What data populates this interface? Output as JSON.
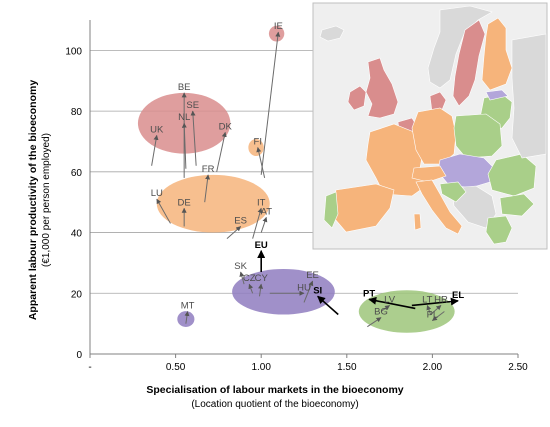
{
  "chart_data": {
    "type": "scatter",
    "xlabel": "Specialisation of labour markets in the bioeconomy",
    "xlabel_sub": "(Location quotient of the bioeconomy)",
    "ylabel": "Apparent labour productivity of the bioeconomy",
    "ylabel_sub": "(€1,000 per person employed)",
    "xlim": [
      0,
      2.5
    ],
    "ylim": [
      0,
      110
    ],
    "x_ticks": [
      "-",
      "0.50",
      "1.00",
      "1.50",
      "2.00",
      "2.50"
    ],
    "x_tick_values": [
      0,
      0.5,
      1.0,
      1.5,
      2.0,
      2.5
    ],
    "y_ticks": [
      "0",
      "20",
      "40",
      "60",
      "80",
      "100"
    ],
    "y_tick_values": [
      0,
      20,
      40,
      60,
      80,
      100
    ],
    "grid": "horizontal",
    "cluster_colors": {
      "pink": "#d98d8d",
      "orange": "#f6b47b",
      "purple": "#8f7cc0",
      "green": "#9dc57a"
    },
    "clusters": [
      {
        "color": "pink",
        "cx": 0.55,
        "cy": 76,
        "rx": 0.27,
        "ry": 10
      },
      {
        "color": "orange",
        "cx": 0.72,
        "cy": 49.5,
        "rx": 0.33,
        "ry": 9.5
      },
      {
        "color": "purple",
        "cx": 1.13,
        "cy": 20.5,
        "rx": 0.3,
        "ry": 7.5
      },
      {
        "color": "purple",
        "cx": 0.56,
        "cy": 11.5,
        "rx": 0.05,
        "ry": 2.6
      },
      {
        "color": "green",
        "cx": 1.85,
        "cy": 14,
        "rx": 0.28,
        "ry": 7
      },
      {
        "color": "pink",
        "cx": 1.09,
        "cy": 105.5,
        "rx": 0.045,
        "ry": 2.6
      },
      {
        "color": "orange",
        "cx": 0.97,
        "cy": 68,
        "rx": 0.045,
        "ry": 2.8
      }
    ],
    "points": [
      {
        "label": "IE",
        "x": 1.1,
        "y": 106,
        "from": [
          1.0,
          59
        ],
        "bold": false
      },
      {
        "label": "BE",
        "x": 0.55,
        "y": 86,
        "from": [
          0.55,
          58
        ],
        "bold": false
      },
      {
        "label": "SE",
        "x": 0.6,
        "y": 80,
        "from": [
          0.62,
          62
        ],
        "bold": false
      },
      {
        "label": "NL",
        "x": 0.55,
        "y": 76,
        "from": [
          0.56,
          61
        ],
        "bold": false
      },
      {
        "label": "UK",
        "x": 0.39,
        "y": 72,
        "from": [
          0.36,
          62
        ],
        "bold": false
      },
      {
        "label": "DK",
        "x": 0.79,
        "y": 73,
        "from": [
          0.74,
          60
        ],
        "bold": false
      },
      {
        "label": "FI",
        "x": 0.98,
        "y": 68,
        "from": [
          1.02,
          58
        ],
        "bold": false
      },
      {
        "label": "FR",
        "x": 0.69,
        "y": 59,
        "from": [
          0.67,
          50
        ],
        "bold": false
      },
      {
        "label": "LU",
        "x": 0.39,
        "y": 51,
        "from": [
          0.47,
          43
        ],
        "bold": false
      },
      {
        "label": "DE",
        "x": 0.55,
        "y": 48,
        "from": [
          0.55,
          42
        ],
        "bold": false
      },
      {
        "label": "IT",
        "x": 1.0,
        "y": 48,
        "from": [
          0.95,
          38
        ],
        "bold": false
      },
      {
        "label": "AT",
        "x": 1.03,
        "y": 45,
        "from": [
          1.0,
          40
        ],
        "bold": false
      },
      {
        "label": "ES",
        "x": 0.88,
        "y": 42,
        "from": [
          0.8,
          38
        ],
        "bold": false
      },
      {
        "label": "EU",
        "x": 1.0,
        "y": 34,
        "from": [
          1.0,
          27
        ],
        "bold": true
      },
      {
        "label": "SK",
        "x": 0.88,
        "y": 27,
        "from": [
          0.9,
          23
        ],
        "bold": false
      },
      {
        "label": "CZ",
        "x": 0.93,
        "y": 23,
        "from": [
          0.95,
          20
        ],
        "bold": false
      },
      {
        "label": "CY",
        "x": 1.0,
        "y": 23,
        "from": [
          0.99,
          19
        ],
        "bold": false
      },
      {
        "label": "HU",
        "x": 1.25,
        "y": 20,
        "from": [
          1.05,
          20
        ],
        "bold": false
      },
      {
        "label": "EE",
        "x": 1.3,
        "y": 24,
        "from": [
          1.25,
          17
        ],
        "bold": false
      },
      {
        "label": "SI",
        "x": 1.33,
        "y": 19,
        "from": [
          1.45,
          13
        ],
        "bold": true
      },
      {
        "label": "MT",
        "x": 0.57,
        "y": 14,
        "from": [
          0.56,
          10
        ],
        "bold": false
      },
      {
        "label": "PT",
        "x": 1.63,
        "y": 18,
        "from": [
          1.9,
          15
        ],
        "bold": true
      },
      {
        "label": "EL",
        "x": 2.15,
        "y": 17.5,
        "from": [
          1.88,
          16
        ],
        "bold": true
      },
      {
        "label": "LV",
        "x": 1.75,
        "y": 16,
        "from": [
          1.7,
          14
        ],
        "bold": false
      },
      {
        "label": "LT",
        "x": 1.97,
        "y": 16,
        "from": [
          1.99,
          13
        ],
        "bold": false
      },
      {
        "label": "HR",
        "x": 2.05,
        "y": 16,
        "from": [
          1.99,
          13
        ],
        "bold": false
      },
      {
        "label": "BG",
        "x": 1.7,
        "y": 12,
        "from": [
          1.62,
          9
        ],
        "bold": false
      },
      {
        "label": "PL",
        "x": 2.0,
        "y": 11,
        "from": [
          2.07,
          14
        ],
        "bold": false
      }
    ]
  },
  "map": {
    "background": "#efefef",
    "country_colors": {
      "pink": "#d98d8d",
      "orange": "#f6b47b",
      "purple": "#b3a6da",
      "green": "#a9cf89",
      "grey": "#d9d9d9"
    }
  }
}
